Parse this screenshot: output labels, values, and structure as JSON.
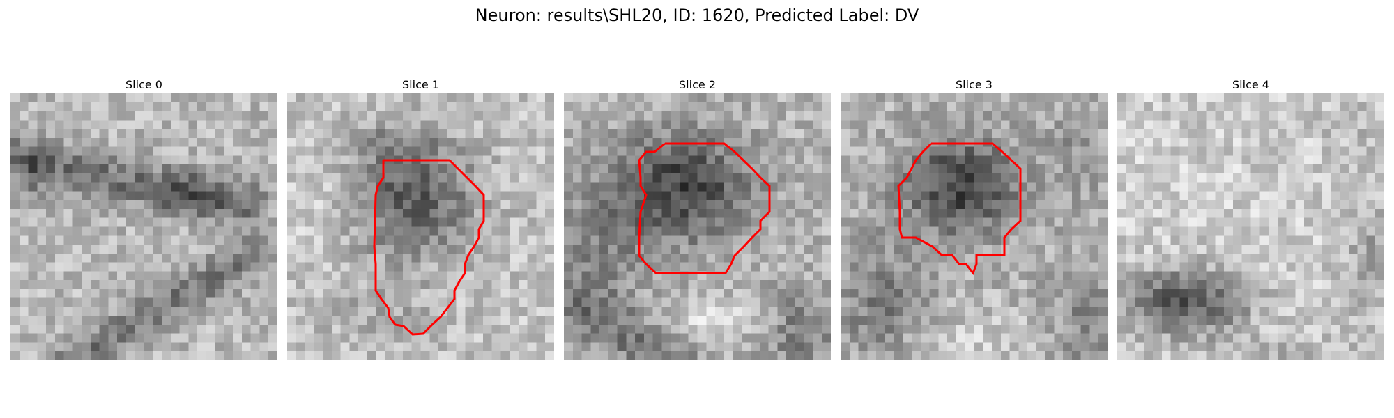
{
  "figure": {
    "title": "Neuron: results\\SHL20, ID: 1620, Predicted Label: DV"
  },
  "panels": [
    {
      "title": "Slice 0",
      "has_contour": false
    },
    {
      "title": "Slice 1",
      "has_contour": true
    },
    {
      "title": "Slice 2",
      "has_contour": true
    },
    {
      "title": "Slice 3",
      "has_contour": true
    },
    {
      "title": "Slice 4",
      "has_contour": false
    }
  ],
  "colors": {
    "contour": "#ff0000",
    "background": "#ffffff"
  }
}
